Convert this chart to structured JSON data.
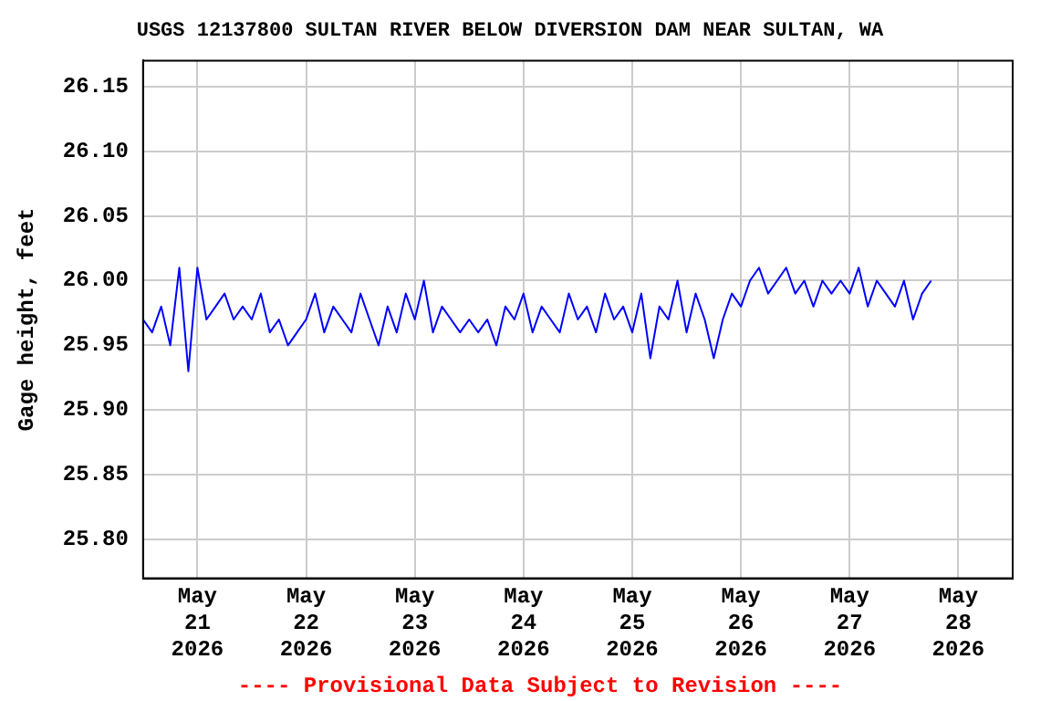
{
  "chart_data": {
    "type": "line",
    "title": "USGS 12137800 SULTAN RIVER BELOW DIVERSION DAM NEAR SULTAN, WA",
    "ylabel": "Gage height, feet",
    "annotations": [
      "---- Provisional Data Subject to Revision ----"
    ],
    "x": [
      "2026-05-20T12:00",
      "2026-05-20T14:00",
      "2026-05-20T16:00",
      "2026-05-20T18:00",
      "2026-05-20T20:00",
      "2026-05-20T22:00",
      "2026-05-21T00:00",
      "2026-05-21T02:00",
      "2026-05-21T04:00",
      "2026-05-21T06:00",
      "2026-05-21T08:00",
      "2026-05-21T10:00",
      "2026-05-21T12:00",
      "2026-05-21T14:00",
      "2026-05-21T16:00",
      "2026-05-21T18:00",
      "2026-05-21T20:00",
      "2026-05-21T22:00",
      "2026-05-22T00:00",
      "2026-05-22T02:00",
      "2026-05-22T04:00",
      "2026-05-22T06:00",
      "2026-05-22T08:00",
      "2026-05-22T10:00",
      "2026-05-22T12:00",
      "2026-05-22T14:00",
      "2026-05-22T16:00",
      "2026-05-22T18:00",
      "2026-05-22T20:00",
      "2026-05-22T22:00",
      "2026-05-23T00:00",
      "2026-05-23T02:00",
      "2026-05-23T04:00",
      "2026-05-23T06:00",
      "2026-05-23T08:00",
      "2026-05-23T10:00",
      "2026-05-23T12:00",
      "2026-05-23T14:00",
      "2026-05-23T16:00",
      "2026-05-23T18:00",
      "2026-05-23T20:00",
      "2026-05-23T22:00",
      "2026-05-24T00:00",
      "2026-05-24T02:00",
      "2026-05-24T04:00",
      "2026-05-24T06:00",
      "2026-05-24T08:00",
      "2026-05-24T10:00",
      "2026-05-24T12:00",
      "2026-05-24T14:00",
      "2026-05-24T16:00",
      "2026-05-24T18:00",
      "2026-05-24T20:00",
      "2026-05-24T22:00",
      "2026-05-25T00:00",
      "2026-05-25T02:00",
      "2026-05-25T04:00",
      "2026-05-25T06:00",
      "2026-05-25T08:00",
      "2026-05-25T10:00",
      "2026-05-25T12:00",
      "2026-05-25T14:00",
      "2026-05-25T16:00",
      "2026-05-25T18:00",
      "2026-05-25T20:00",
      "2026-05-25T22:00",
      "2026-05-26T00:00",
      "2026-05-26T02:00",
      "2026-05-26T04:00",
      "2026-05-26T06:00",
      "2026-05-26T08:00",
      "2026-05-26T10:00",
      "2026-05-26T12:00",
      "2026-05-26T14:00",
      "2026-05-26T16:00",
      "2026-05-26T18:00",
      "2026-05-26T20:00",
      "2026-05-26T22:00",
      "2026-05-27T00:00",
      "2026-05-27T02:00",
      "2026-05-27T04:00",
      "2026-05-27T06:00",
      "2026-05-27T08:00",
      "2026-05-27T10:00",
      "2026-05-27T12:00",
      "2026-05-27T14:00",
      "2026-05-27T16:00",
      "2026-05-27T18:00"
    ],
    "series": [
      {
        "color": "#0000ff",
        "values": [
          25.97,
          25.96,
          25.98,
          25.95,
          26.01,
          25.93,
          26.01,
          25.97,
          25.98,
          25.99,
          25.97,
          25.98,
          25.97,
          25.99,
          25.96,
          25.97,
          25.95,
          25.96,
          25.97,
          25.99,
          25.96,
          25.98,
          25.97,
          25.96,
          25.99,
          25.97,
          25.95,
          25.98,
          25.96,
          25.99,
          25.97,
          26.0,
          25.96,
          25.98,
          25.97,
          25.96,
          25.97,
          25.96,
          25.97,
          25.95,
          25.98,
          25.97,
          25.99,
          25.96,
          25.98,
          25.97,
          25.96,
          25.99,
          25.97,
          25.98,
          25.96,
          25.99,
          25.97,
          25.98,
          25.96,
          25.99,
          25.94,
          25.98,
          25.97,
          26.0,
          25.96,
          25.99,
          25.97,
          25.94,
          25.97,
          25.99,
          25.98,
          26.0,
          26.01,
          25.99,
          26.0,
          26.01,
          25.99,
          26.0,
          25.98,
          26.0,
          25.99,
          26.0,
          25.99,
          26.01,
          25.98,
          26.0,
          25.99,
          25.98,
          26.0,
          25.97,
          25.99,
          26.0
        ]
      }
    ],
    "xlim": [
      "2026-05-20T12:00",
      "2026-05-28T12:00"
    ],
    "xticks": [
      {
        "value": "2026-05-21",
        "label": "May 21 2026"
      },
      {
        "value": "2026-05-22",
        "label": "May 22 2026"
      },
      {
        "value": "2026-05-23",
        "label": "May 23 2026"
      },
      {
        "value": "2026-05-24",
        "label": "May 24 2026"
      },
      {
        "value": "2026-05-25",
        "label": "May 25 2026"
      },
      {
        "value": "2026-05-26",
        "label": "May 26 2026"
      },
      {
        "value": "2026-05-27",
        "label": "May 27 2026"
      },
      {
        "value": "2026-05-28",
        "label": "May 28 2026"
      }
    ],
    "ylim": [
      25.77,
      26.17
    ],
    "yticks": [
      {
        "value": 25.8,
        "label": "25.80"
      },
      {
        "value": 25.85,
        "label": "25.85"
      },
      {
        "value": 25.9,
        "label": "25.90"
      },
      {
        "value": 25.95,
        "label": "25.95"
      },
      {
        "value": 26.0,
        "label": "26.00"
      },
      {
        "value": 26.05,
        "label": "26.05"
      },
      {
        "value": 26.1,
        "label": "26.10"
      },
      {
        "value": 26.15,
        "label": "26.15"
      }
    ],
    "grid": true,
    "legend": false,
    "marker": "none",
    "line_style": "solid"
  }
}
